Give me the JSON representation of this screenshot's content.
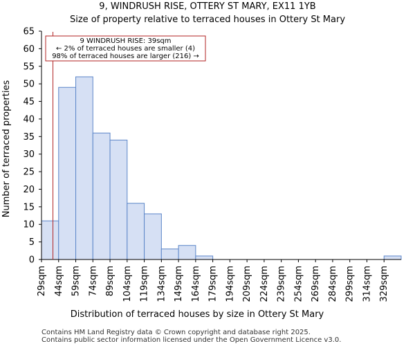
{
  "chart_data": {
    "type": "bar",
    "title": [
      "9, WINDRUSH RISE, OTTERY ST MARY, EX11 1YB",
      "Size of property relative to terraced houses in Ottery St Mary"
    ],
    "xlabel": "Distribution of terraced houses by size in Ottery St Mary",
    "ylabel": "Number of terraced properties",
    "categories": [
      "29sqm",
      "44sqm",
      "59sqm",
      "74sqm",
      "89sqm",
      "104sqm",
      "119sqm",
      "134sqm",
      "149sqm",
      "164sqm",
      "179sqm",
      "194sqm",
      "209sqm",
      "224sqm",
      "239sqm",
      "254sqm",
      "269sqm",
      "284sqm",
      "299sqm",
      "314sqm",
      "329sqm"
    ],
    "bin_edges": [
      29,
      44,
      59,
      74,
      89,
      104,
      119,
      134,
      149,
      164,
      179,
      194,
      209,
      224,
      239,
      254,
      269,
      284,
      299,
      314,
      329,
      344
    ],
    "values": [
      11,
      49,
      52,
      36,
      34,
      16,
      13,
      3,
      4,
      1,
      0,
      0,
      0,
      0,
      0,
      0,
      0,
      0,
      0,
      0,
      1
    ],
    "ylim": [
      0,
      65
    ],
    "yticks": [
      0,
      5,
      10,
      15,
      20,
      25,
      30,
      35,
      40,
      45,
      50,
      55,
      60,
      65
    ],
    "bar_fill": "#d6e0f4",
    "bar_stroke": "#5b85c8",
    "marker": {
      "value_sqm": 39,
      "color": "#b22222",
      "annotation": [
        "9 WINDRUSH RISE: 39sqm",
        "← 2% of terraced houses are smaller (4)",
        "98% of terraced houses are larger (216) →"
      ]
    },
    "grid": false
  },
  "footer": [
    "Contains HM Land Registry data © Crown copyright and database right 2025.",
    "Contains public sector information licensed under the Open Government Licence v3.0."
  ]
}
